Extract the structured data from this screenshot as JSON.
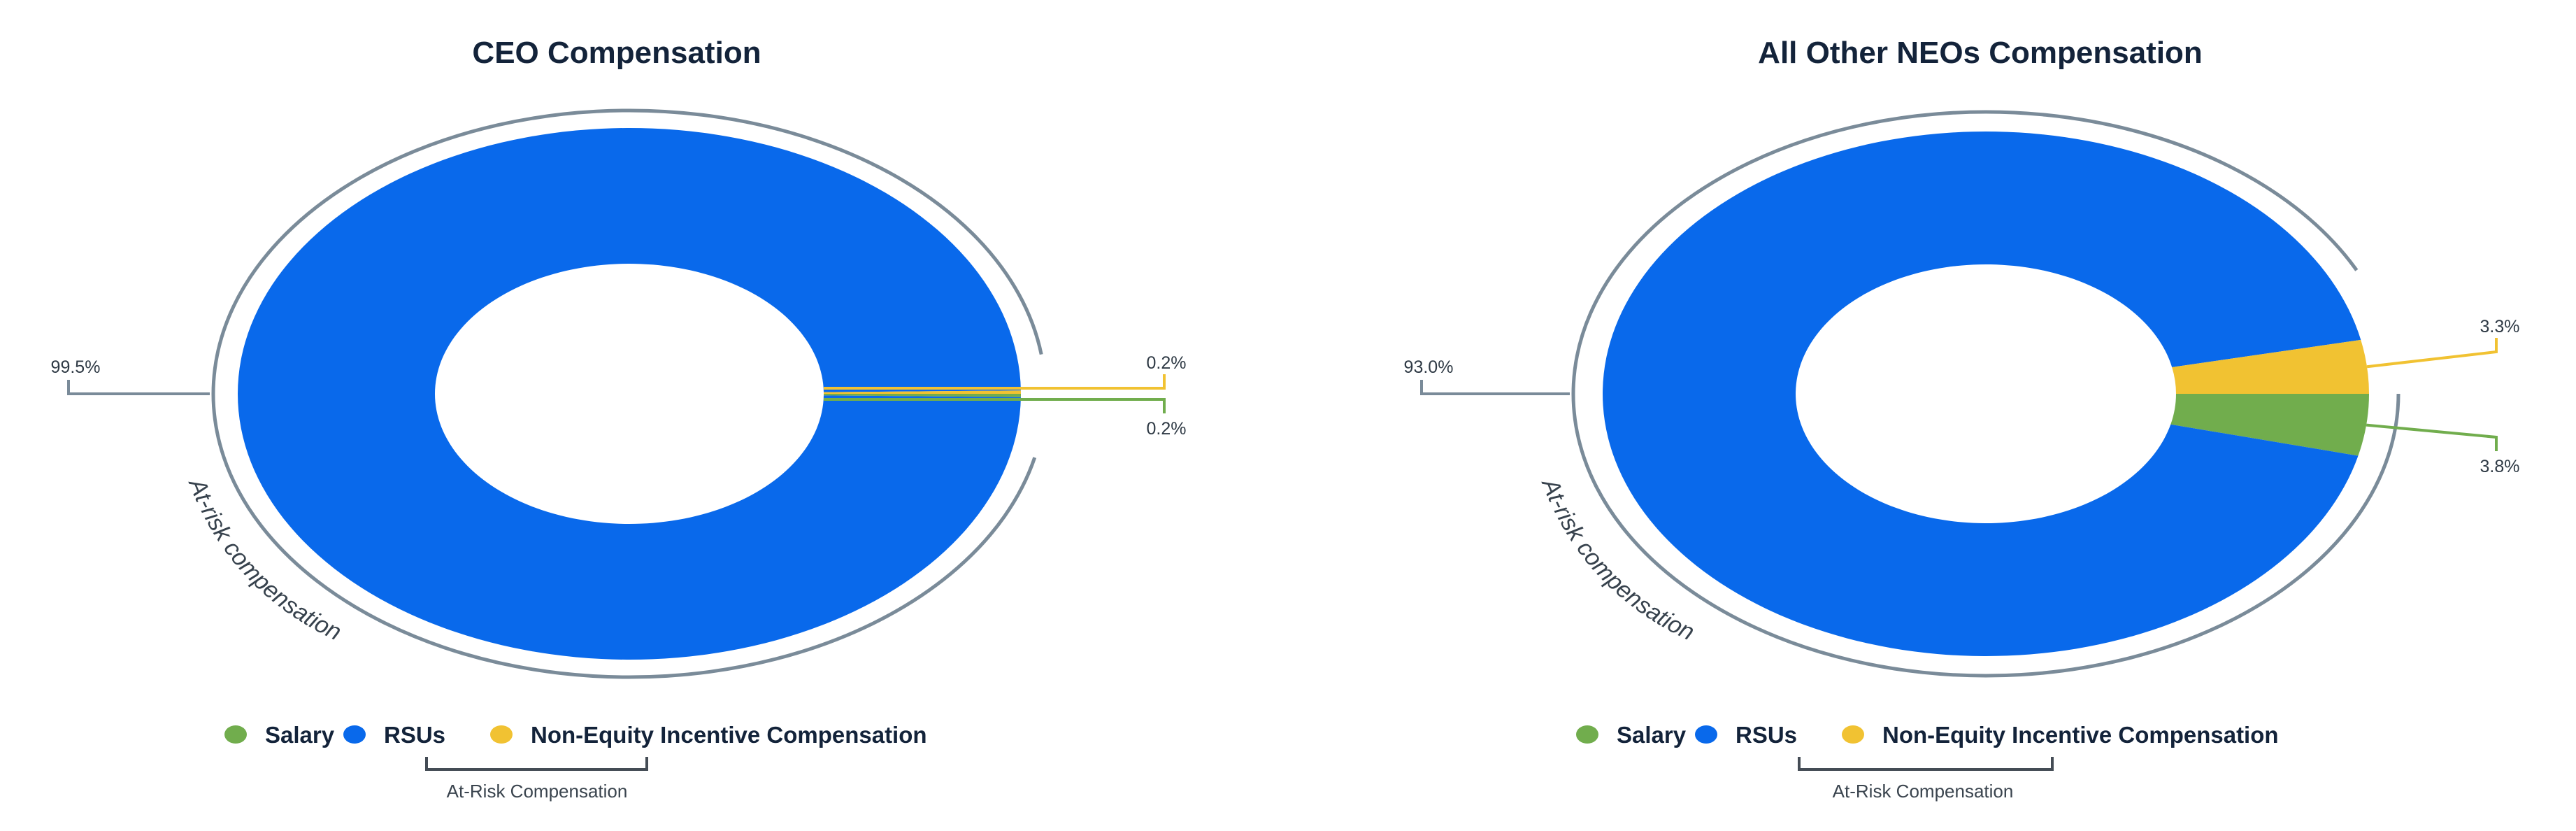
{
  "colors": {
    "salary": "#71ad4d",
    "rsus": "#0969eb",
    "nonequity": "#f1c232",
    "ring": "#7a8b99",
    "text": "#13233a"
  },
  "chart_data": [
    {
      "type": "pie",
      "variant": "donut",
      "title": "CEO Compensation",
      "series": [
        {
          "name": "Salary",
          "value": 0.2,
          "label": "0.2%"
        },
        {
          "name": "RSUs",
          "value": 99.5,
          "label": "99.5%"
        },
        {
          "name": "Non-Equity Incentive Compensation",
          "value": 0.2,
          "label": "0.2%"
        }
      ],
      "arc_label": "At-risk compensation",
      "legend": [
        "Salary",
        "RSUs",
        "Non-Equity Incentive Compensation"
      ],
      "bracket_label": "At-Risk Compensation",
      "legend_position": "bottom"
    },
    {
      "type": "pie",
      "variant": "donut",
      "title": "All Other NEOs Compensation",
      "series": [
        {
          "name": "Salary",
          "value": 3.8,
          "label": "3.8%"
        },
        {
          "name": "RSUs",
          "value": 93.0,
          "label": "93.0%"
        },
        {
          "name": "Non-Equity Incentive Compensation",
          "value": 3.3,
          "label": "3.3%"
        }
      ],
      "arc_label": "At-risk compensation",
      "legend": [
        "Salary",
        "RSUs",
        "Non-Equity Incentive Compensation"
      ],
      "bracket_label": "At-Risk Compensation",
      "legend_position": "bottom"
    }
  ]
}
